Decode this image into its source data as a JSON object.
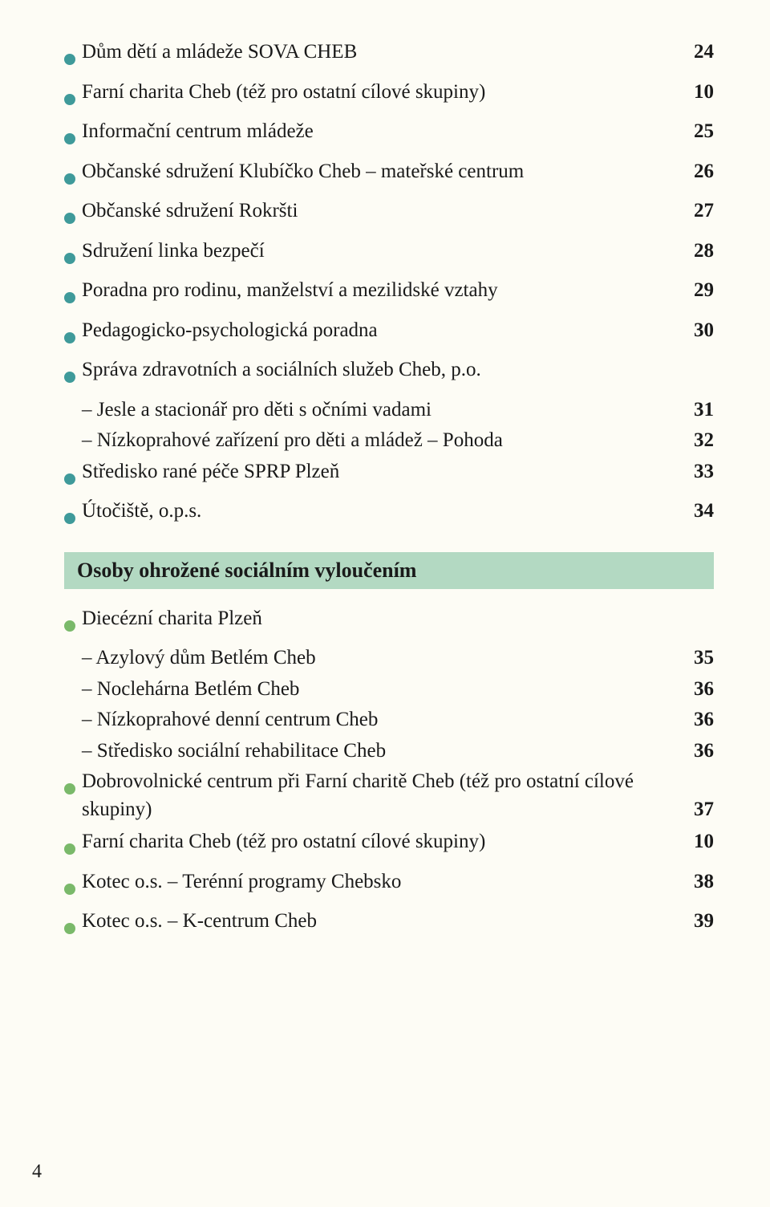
{
  "colors": {
    "teal_bullet": "#3f9a9a",
    "green_bullet": "#7ab96a",
    "band_bg": "#b3d9c2",
    "text": "#1a1a1a",
    "page_bg": "#fdfcf5"
  },
  "section1": {
    "items": [
      {
        "label": "Dům dětí a mládeže SOVA CHEB",
        "page": "24"
      },
      {
        "label": "Farní charita Cheb (též pro ostatní cílové skupiny)",
        "page": "10"
      },
      {
        "label": "Informační centrum mládeže",
        "page": "25"
      },
      {
        "label": "Občanské sdružení Klubíčko Cheb – mateřské centrum",
        "page": "26"
      },
      {
        "label": "Občanské sdružení Rokršti",
        "page": "27"
      },
      {
        "label": "Sdružení linka bezpečí",
        "page": "28"
      },
      {
        "label": "Poradna pro rodinu, manželství a mezilidské vztahy",
        "page": "29"
      },
      {
        "label": "Pedagogicko-psychologická poradna",
        "page": "30"
      },
      {
        "label": "Správa zdravotních a sociálních služeb Cheb, p.o.",
        "sub": [
          {
            "label": "– Jesle a stacionář pro děti s očními vadami",
            "page": "31"
          },
          {
            "label": "– Nízkoprahové zařízení pro děti a mládež – Pohoda",
            "page": "32"
          }
        ]
      },
      {
        "label": "Středisko rané péče SPRP Plzeň",
        "page": "33"
      },
      {
        "label": "Útočiště, o.p.s.",
        "page": "34"
      }
    ]
  },
  "band": {
    "title": "Osoby ohrožené sociálním vyloučením"
  },
  "section2": {
    "items": [
      {
        "label": "Diecézní charita Plzeň",
        "sub": [
          {
            "label": "– Azylový dům Betlém Cheb",
            "page": "35"
          },
          {
            "label": "– Noclehárna Betlém Cheb",
            "page": "36"
          },
          {
            "label": "– Nízkoprahové denní centrum Cheb",
            "page": "36"
          },
          {
            "label": "– Středisko sociální rehabilitace Cheb",
            "page": "36"
          }
        ]
      },
      {
        "label": "Dobrovolnické centrum při Farní charitě Cheb (též pro ostatní cílové skupiny)",
        "page": "37",
        "multiline": true
      },
      {
        "label": "Farní charita Cheb (též pro ostatní cílové skupiny)",
        "page": "10"
      },
      {
        "label": "Kotec o.s. – Terénní programy Chebsko",
        "page": "38"
      },
      {
        "label": "Kotec o.s. – K-centrum Cheb",
        "page": "39"
      }
    ]
  },
  "page_number": "4"
}
